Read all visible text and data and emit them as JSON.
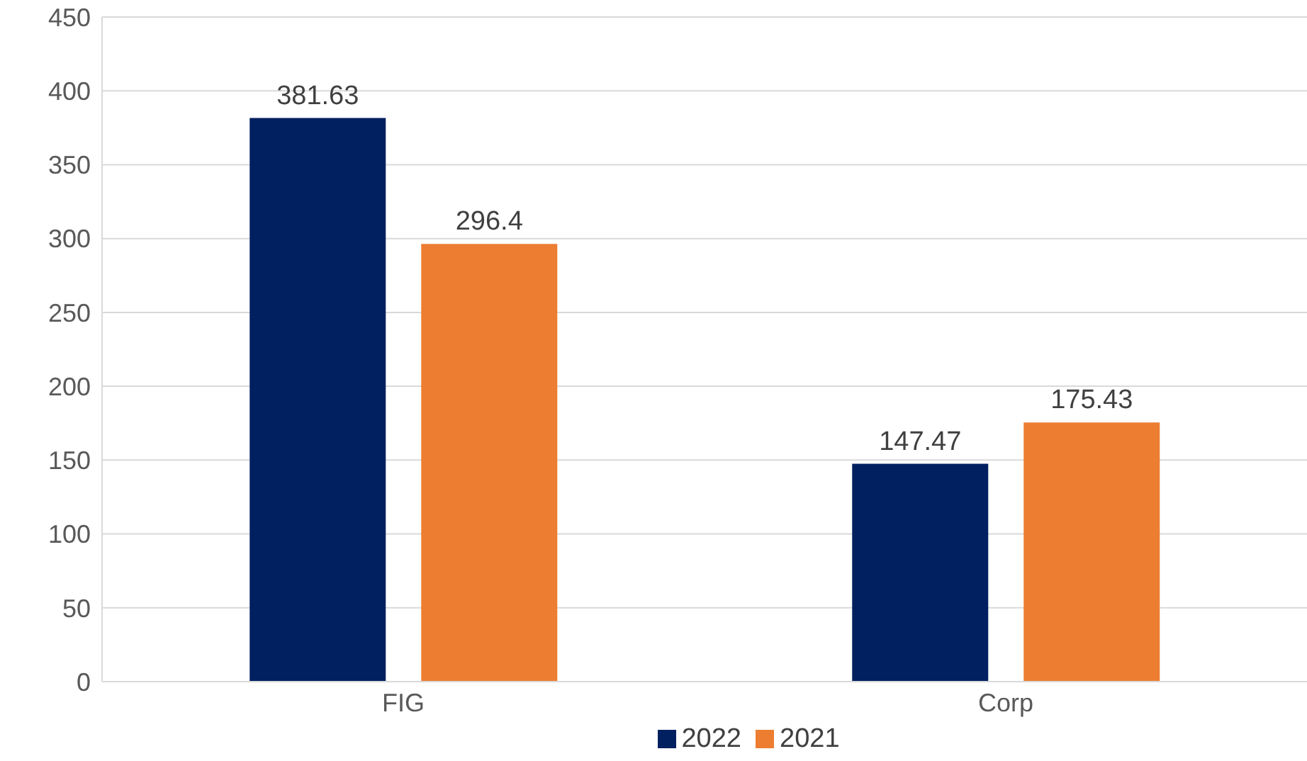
{
  "chart_data": {
    "type": "bar",
    "categories": [
      "FIG",
      "Corp"
    ],
    "series": [
      {
        "name": "2022",
        "color": "#002060",
        "values": [
          381.63,
          147.47
        ]
      },
      {
        "name": "2021",
        "color": "#ed7d31",
        "values": [
          296.4,
          175.43
        ]
      }
    ],
    "ylim": [
      0,
      450
    ],
    "yticks": [
      0,
      50,
      100,
      150,
      200,
      250,
      300,
      350,
      400,
      450
    ],
    "grid": "y",
    "legend": "bottom",
    "data_labels": true
  }
}
